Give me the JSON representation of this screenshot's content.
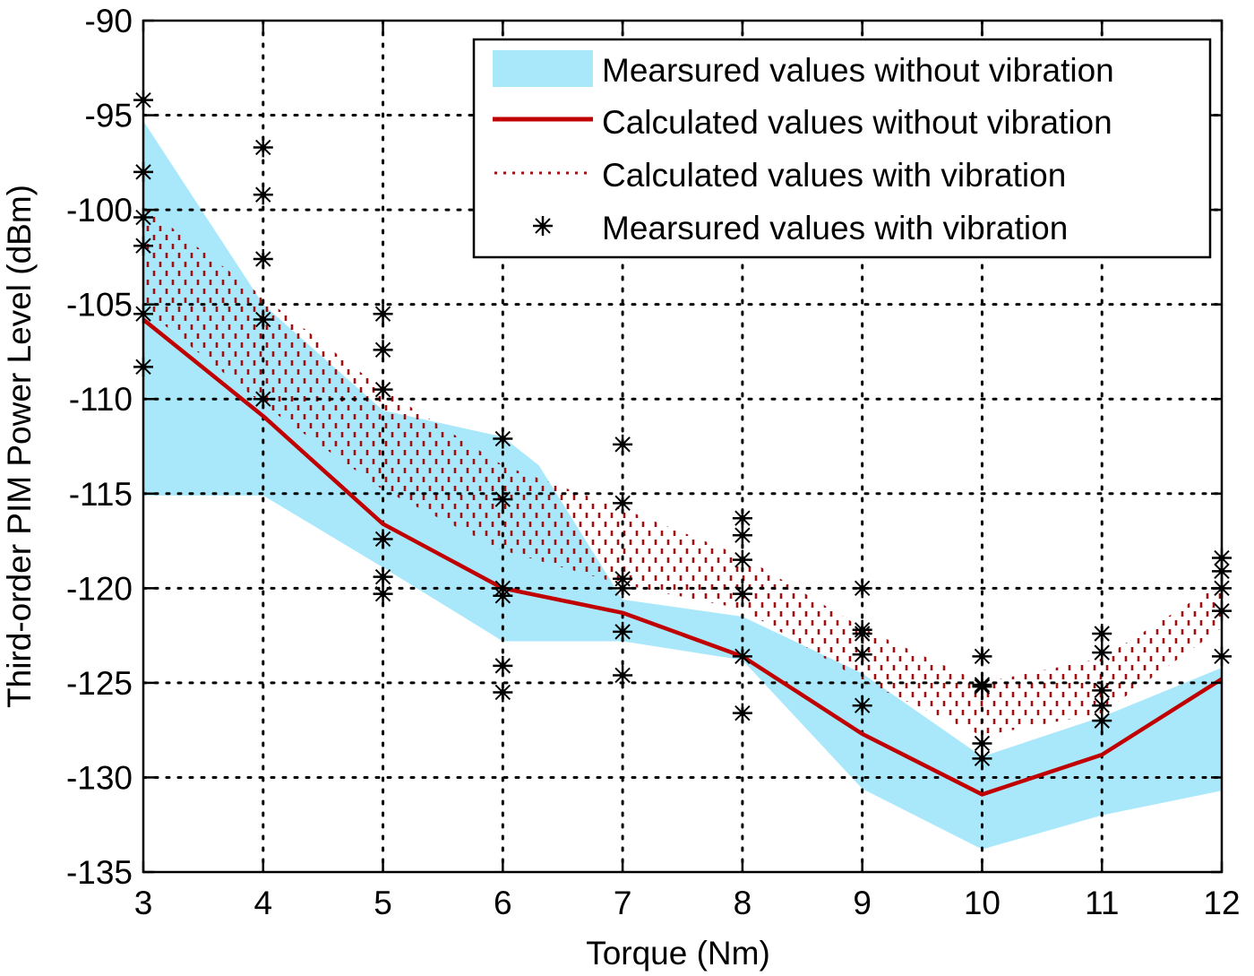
{
  "chart_data": {
    "type": "line",
    "title": "",
    "xlabel": "Torque (Nm)",
    "ylabel": "Third-order PIM Power Level (dBm)",
    "xlim": [
      3,
      12
    ],
    "ylim": [
      -135,
      -90
    ],
    "grid": true,
    "x_ticks": [
      "3",
      "4",
      "5",
      "6",
      "7",
      "8",
      "9",
      "10",
      "11",
      "12"
    ],
    "y_ticks": [
      "-90",
      "-95",
      "-100",
      "-105",
      "-110",
      "-115",
      "-120",
      "-125",
      "-130",
      "-135"
    ],
    "legend_position": "top-right",
    "colors": {
      "measured_band": "#a9e8fb",
      "calculated_line": "#c00000",
      "vibration_hatch": "#a01010",
      "markers": "#000000"
    },
    "series": [
      {
        "name": "Mearsured values without vibration",
        "kind": "band",
        "x": [
          3,
          4,
          5,
          6,
          6.3,
          7,
          8,
          9,
          10,
          11,
          12
        ],
        "upper": [
          -95.3,
          -105.0,
          -110.6,
          -112.0,
          -113.5,
          -120.6,
          -121.5,
          -124.5,
          -128.9,
          -126.8,
          -124.2
        ],
        "lower": [
          -115.1,
          -115.1,
          -118.9,
          -122.8,
          -122.8,
          -122.8,
          -123.8,
          -130.6,
          -133.8,
          -132.0,
          -130.7
        ]
      },
      {
        "name": "Calculated values without vibration",
        "kind": "line",
        "x": [
          3,
          4,
          5,
          6,
          7,
          8,
          9,
          10,
          11,
          12
        ],
        "y": [
          -105.8,
          -110.9,
          -116.6,
          -120.0,
          -121.3,
          -123.6,
          -127.7,
          -130.9,
          -128.8,
          -124.8
        ]
      },
      {
        "name": "Calculated values with vibration",
        "kind": "hatched-band",
        "x": [
          3,
          4,
          5,
          6,
          7,
          8,
          9,
          10,
          11,
          12
        ],
        "upper": [
          -99.8,
          -104.6,
          -109.5,
          -113.5,
          -115.8,
          -118.3,
          -122.1,
          -125.0,
          -123.7,
          -119.7
        ],
        "lower": [
          -105.2,
          -110.3,
          -114.8,
          -118.0,
          -119.8,
          -121.1,
          -124.9,
          -127.8,
          -126.6,
          -122.1
        ]
      },
      {
        "name": "Mearsured values with vibration",
        "kind": "scatter",
        "points": [
          [
            3,
            -94.2
          ],
          [
            3,
            -98.0
          ],
          [
            3,
            -100.4
          ],
          [
            3,
            -101.9
          ],
          [
            3,
            -105.5
          ],
          [
            3,
            -108.3
          ],
          [
            4,
            -96.7
          ],
          [
            4,
            -99.2
          ],
          [
            4,
            -102.6
          ],
          [
            4,
            -105.8
          ],
          [
            4,
            -110.0
          ],
          [
            5,
            -105.5
          ],
          [
            5,
            -107.4
          ],
          [
            5,
            -109.5
          ],
          [
            5,
            -117.4
          ],
          [
            5,
            -119.4
          ],
          [
            5,
            -120.3
          ],
          [
            6,
            -112.1
          ],
          [
            6,
            -115.3
          ],
          [
            6,
            -120.0
          ],
          [
            6,
            -120.4
          ],
          [
            6,
            -124.1
          ],
          [
            6,
            -125.5
          ],
          [
            7,
            -112.4
          ],
          [
            7,
            -115.5
          ],
          [
            7,
            -119.5
          ],
          [
            7,
            -120.0
          ],
          [
            7,
            -122.3
          ],
          [
            7,
            -124.6
          ],
          [
            8,
            -116.3
          ],
          [
            8,
            -117.2
          ],
          [
            8,
            -118.5
          ],
          [
            8,
            -120.3
          ],
          [
            8,
            -123.6
          ],
          [
            8,
            -126.6
          ],
          [
            9,
            -120.0
          ],
          [
            9,
            -122.2
          ],
          [
            9,
            -122.4
          ],
          [
            9,
            -123.5
          ],
          [
            9,
            -126.2
          ],
          [
            10,
            -123.6
          ],
          [
            10,
            -125.1
          ],
          [
            10,
            -125.2
          ],
          [
            10,
            -128.2
          ],
          [
            10,
            -129.0
          ],
          [
            11,
            -122.4
          ],
          [
            11,
            -123.4
          ],
          [
            11,
            -125.4
          ],
          [
            11,
            -126.2
          ],
          [
            11,
            -127.0
          ],
          [
            12,
            -118.4
          ],
          [
            12,
            -119.1
          ],
          [
            12,
            -120.0
          ],
          [
            12,
            -121.2
          ],
          [
            12,
            -123.6
          ]
        ]
      }
    ],
    "legend": [
      {
        "label": "Mearsured values without vibration",
        "symbol": "band"
      },
      {
        "label": "Calculated values without vibration",
        "symbol": "line"
      },
      {
        "label": "Calculated values with vibration",
        "symbol": "dotted"
      },
      {
        "label": "Mearsured values with vibration",
        "symbol": "asterisk"
      }
    ]
  }
}
